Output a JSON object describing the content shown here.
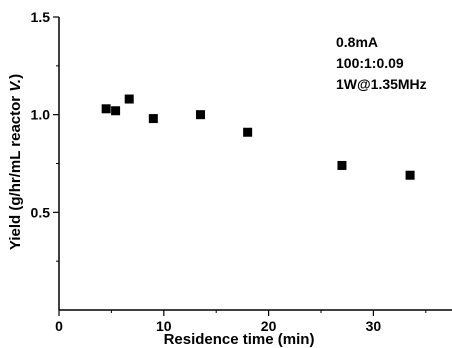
{
  "chart_data": {
    "type": "scatter",
    "xlabel": "Residence time (min)",
    "ylabel_main": "Yield (g/hr/mL reactor ",
    "ylabel_italic": "V.",
    "ylabel_tail": ")",
    "xlim": [
      0,
      37.5
    ],
    "ylim": [
      0,
      1.5
    ],
    "x_ticks": [
      0,
      10,
      20,
      30
    ],
    "y_ticks": [
      0.5,
      1.0,
      1.5
    ],
    "x_tick_labels": [
      "0",
      "10",
      "20",
      "30"
    ],
    "y_tick_labels": [
      "0.5",
      "1.0",
      "1.5"
    ],
    "grid": false,
    "marker": "square",
    "marker_color": "#000000",
    "series": [
      {
        "x": [
          4.5,
          5.4,
          6.7,
          9.0,
          13.5,
          18.0,
          27.0,
          33.5
        ],
        "y": [
          1.03,
          1.02,
          1.08,
          0.98,
          1.0,
          0.91,
          0.74,
          0.69
        ]
      }
    ],
    "annotations": [
      "0.8mA",
      "100:1:0.09",
      "1W@1.35MHz"
    ]
  }
}
